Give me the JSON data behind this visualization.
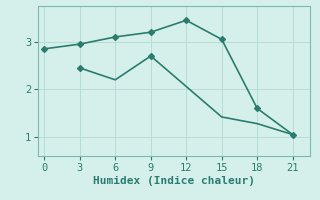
{
  "line1_x": [
    0,
    3,
    6,
    9,
    12,
    15,
    18,
    21
  ],
  "line1_y": [
    2.85,
    2.95,
    3.1,
    3.2,
    3.45,
    3.05,
    1.6,
    1.05
  ],
  "line2_x": [
    3,
    6,
    9,
    15,
    18,
    21
  ],
  "line2_y": [
    2.45,
    2.2,
    2.7,
    1.42,
    1.28,
    1.05
  ],
  "line_color": "#2a7d6e",
  "marker": "D",
  "marker_size": 3,
  "linewidth": 1.2,
  "xlabel": "Humidex (Indice chaleur)",
  "xlim": [
    -0.5,
    22.5
  ],
  "ylim": [
    0.6,
    3.75
  ],
  "xticks": [
    0,
    3,
    6,
    9,
    12,
    15,
    18,
    21
  ],
  "yticks": [
    1,
    2,
    3
  ],
  "bg_color": "#d5f0eb",
  "grid_color": "#b8ddd7",
  "font_color": "#2a7d6e",
  "spine_color": "#7ab8b0"
}
